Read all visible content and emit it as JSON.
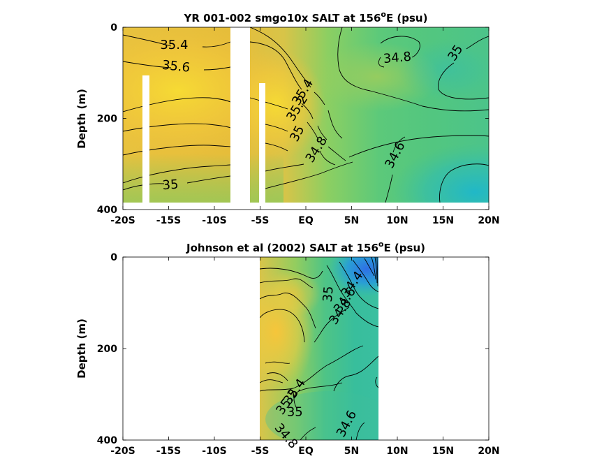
{
  "chart_data": [
    {
      "type": "heatmap",
      "title_main": "YR 001-002 smgo10x SALT at 156",
      "title_sup": "o",
      "title_tail": "E (psu)",
      "ylabel": "Depth (m)",
      "xlim": [
        -20,
        20
      ],
      "ylim": [
        400,
        0
      ],
      "xticks": [
        -20,
        -15,
        -10,
        -5,
        0,
        5,
        10,
        15,
        20
      ],
      "xtick_labels": [
        "-20S",
        "-15S",
        "-10S",
        "-5S",
        "EQ",
        "5N",
        "10N",
        "15N",
        "20N"
      ],
      "yticks": [
        0,
        200,
        400
      ],
      "ytick_labels": [
        "0",
        "200",
        "400"
      ],
      "data_extent": {
        "x": [
          -20,
          20
        ],
        "depth": [
          0,
          380
        ]
      },
      "masked_columns": [
        {
          "x": [
            -17.8,
            -17.1
          ],
          "depth": [
            105,
            380
          ]
        },
        {
          "x": [
            -7.3,
            -5.6
          ],
          "depth": [
            0,
            380
          ]
        },
        {
          "x": [
            -5.3,
            -4.6
          ],
          "depth": [
            120,
            380
          ]
        }
      ],
      "contour_labels": [
        {
          "text": "35.4",
          "x": -14.4,
          "depth": 40,
          "angle": 0
        },
        {
          "text": "35.6",
          "x": -14.2,
          "depth": 87,
          "angle": 6
        },
        {
          "text": "35.4",
          "x": -0.3,
          "depth": 143,
          "angle": -58
        },
        {
          "text": "35.2",
          "x": -0.9,
          "depth": 178,
          "angle": -58
        },
        {
          "text": "35",
          "x": -0.9,
          "depth": 234,
          "angle": -62
        },
        {
          "text": "34.8",
          "x": 1.2,
          "depth": 269,
          "angle": -57
        },
        {
          "text": "35",
          "x": -14.8,
          "depth": 347,
          "angle": -4
        },
        {
          "text": "34.8",
          "x": 10.0,
          "depth": 68,
          "angle": -5
        },
        {
          "text": "35",
          "x": 16.4,
          "depth": 57,
          "angle": -57
        },
        {
          "text": "34.6",
          "x": 9.8,
          "depth": 281,
          "angle": -62
        }
      ]
    },
    {
      "type": "heatmap",
      "title_main": "Johnson et al (2002) SALT at 156",
      "title_sup": "o",
      "title_tail": "E (psu)",
      "ylabel": "Depth (m)",
      "xlim": [
        -20,
        20
      ],
      "ylim": [
        400,
        0
      ],
      "xticks": [
        -20,
        -15,
        -10,
        -5,
        0,
        5,
        10,
        15,
        20
      ],
      "xtick_labels": [
        "-20S",
        "-15S",
        "-10S",
        "-5S",
        "EQ",
        "5N",
        "10N",
        "15N",
        "20N"
      ],
      "yticks": [
        0,
        200,
        400
      ],
      "ytick_labels": [
        "0",
        "200",
        "400"
      ],
      "data_extent": {
        "x": [
          -5,
          8
        ],
        "depth": [
          0,
          400
        ]
      },
      "contour_labels": [
        {
          "text": "34.4",
          "x": 5.1,
          "depth": 60,
          "angle": -55
        },
        {
          "text": "34.6",
          "x": 4.3,
          "depth": 95,
          "angle": -55
        },
        {
          "text": "34.8",
          "x": 3.8,
          "depth": 120,
          "angle": -55
        },
        {
          "text": "35",
          "x": 2.5,
          "depth": 81,
          "angle": -85
        },
        {
          "text": "35.4",
          "x": -1.2,
          "depth": 295,
          "angle": -55
        },
        {
          "text": "35.2",
          "x": -2.0,
          "depth": 317,
          "angle": -55
        },
        {
          "text": "35",
          "x": -1.2,
          "depth": 340,
          "angle": 0
        },
        {
          "text": "34.6",
          "x": 4.5,
          "depth": 365,
          "angle": -62
        },
        {
          "text": "34.8",
          "x": -2.2,
          "depth": 392,
          "angle": 50
        }
      ]
    }
  ]
}
